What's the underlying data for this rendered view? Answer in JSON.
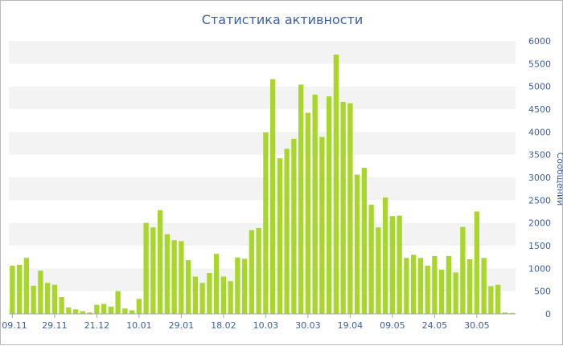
{
  "chart_data": {
    "type": "bar",
    "title": "Статистика активности",
    "ylabel": "Сообщений",
    "xlabel": "",
    "ylim": [
      0,
      6000
    ],
    "y_ticks": [
      0,
      500,
      1000,
      1500,
      2000,
      2500,
      3000,
      3500,
      4000,
      4500,
      5000,
      5500,
      6000
    ],
    "x_tick_labels": [
      {
        "label": "09.11",
        "index": 0
      },
      {
        "label": "29.11",
        "index": 6
      },
      {
        "label": "21.12",
        "index": 12
      },
      {
        "label": "10.01",
        "index": 18
      },
      {
        "label": "29.01",
        "index": 24
      },
      {
        "label": "18.02",
        "index": 30
      },
      {
        "label": "10.03",
        "index": 36
      },
      {
        "label": "30.03",
        "index": 42
      },
      {
        "label": "19.04",
        "index": 48
      },
      {
        "label": "09.05",
        "index": 54
      },
      {
        "label": "24.05",
        "index": 60
      },
      {
        "label": "30.05",
        "index": 66
      }
    ],
    "grid": "alternating horizontal bands",
    "bar_color": "#a8d62a",
    "values": [
      1060,
      1080,
      1230,
      620,
      950,
      680,
      640,
      370,
      140,
      100,
      60,
      30,
      200,
      220,
      160,
      500,
      120,
      80,
      330,
      2000,
      1900,
      2280,
      1750,
      1620,
      1600,
      1180,
      820,
      680,
      900,
      1320,
      820,
      720,
      1240,
      1210,
      1840,
      1890,
      3990,
      5160,
      3420,
      3630,
      3850,
      5040,
      4420,
      4820,
      3890,
      4780,
      5700,
      4660,
      4630,
      3060,
      3210,
      2400,
      1900,
      2560,
      2150,
      2160,
      1230,
      1300,
      1230,
      1060,
      1270,
      970,
      1270,
      910,
      1910,
      1200,
      2250,
      1230,
      610,
      640,
      30,
      20
    ]
  }
}
